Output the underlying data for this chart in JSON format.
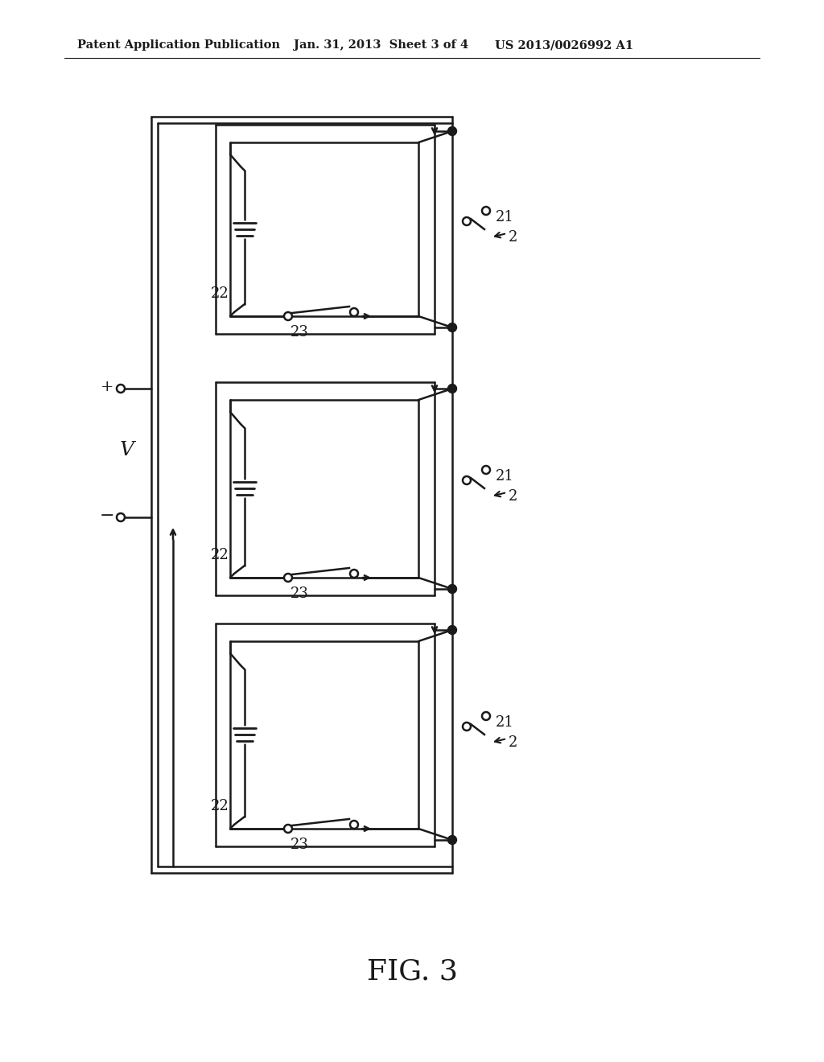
{
  "header_left": "Patent Application Publication",
  "header_mid": "Jan. 31, 2013  Sheet 3 of 4",
  "header_right": "US 2013/0026992 A1",
  "fig_label": "FIG. 3",
  "bg_color": "#ffffff",
  "line_color": "#1a1a1a",
  "header_fontsize": 10.5,
  "fig_fontsize": 26,
  "label_fontsize": 13
}
